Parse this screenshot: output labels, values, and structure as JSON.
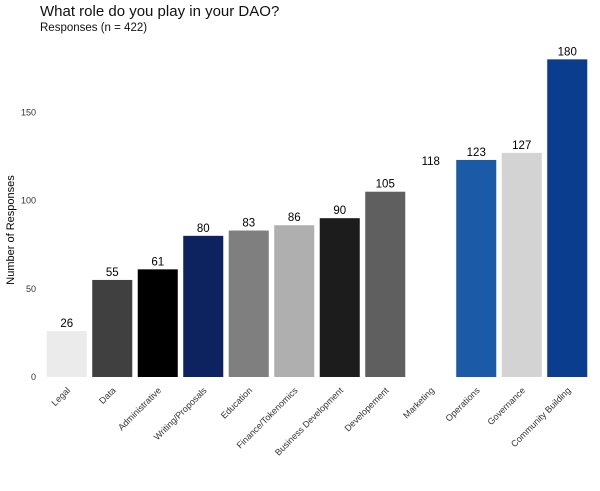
{
  "header": {
    "title": "What role do you play in your DAO?",
    "subtitle": "Responses (n = 422)"
  },
  "chart_data": {
    "type": "bar",
    "title": "What role do you play in your DAO?",
    "subtitle": "Responses (n = 422)",
    "xlabel": "",
    "ylabel": "Number of Responses",
    "ylim": [
      0,
      187
    ],
    "yticks": [
      0,
      50,
      100,
      150
    ],
    "grid": false,
    "legend": "none",
    "categories": [
      "Legal",
      "Data",
      "Administrative",
      "Writing/Proposals",
      "Education",
      "Finance/Tokenomics",
      "Business Development",
      "Developement",
      "Marketing",
      "Operations",
      "Governance",
      "Community Building"
    ],
    "values": [
      26,
      55,
      61,
      80,
      83,
      86,
      90,
      105,
      118,
      123,
      127,
      180
    ],
    "colors": [
      "#ebebeb",
      "#404040",
      "#000000",
      "#0c2360",
      "#7f7f7f",
      "#afafaf",
      "#1c1c1c",
      "#5f5f5f",
      "#ffffff",
      "#1b5aa6",
      "#d3d3d3",
      "#0a3d8d"
    ]
  }
}
